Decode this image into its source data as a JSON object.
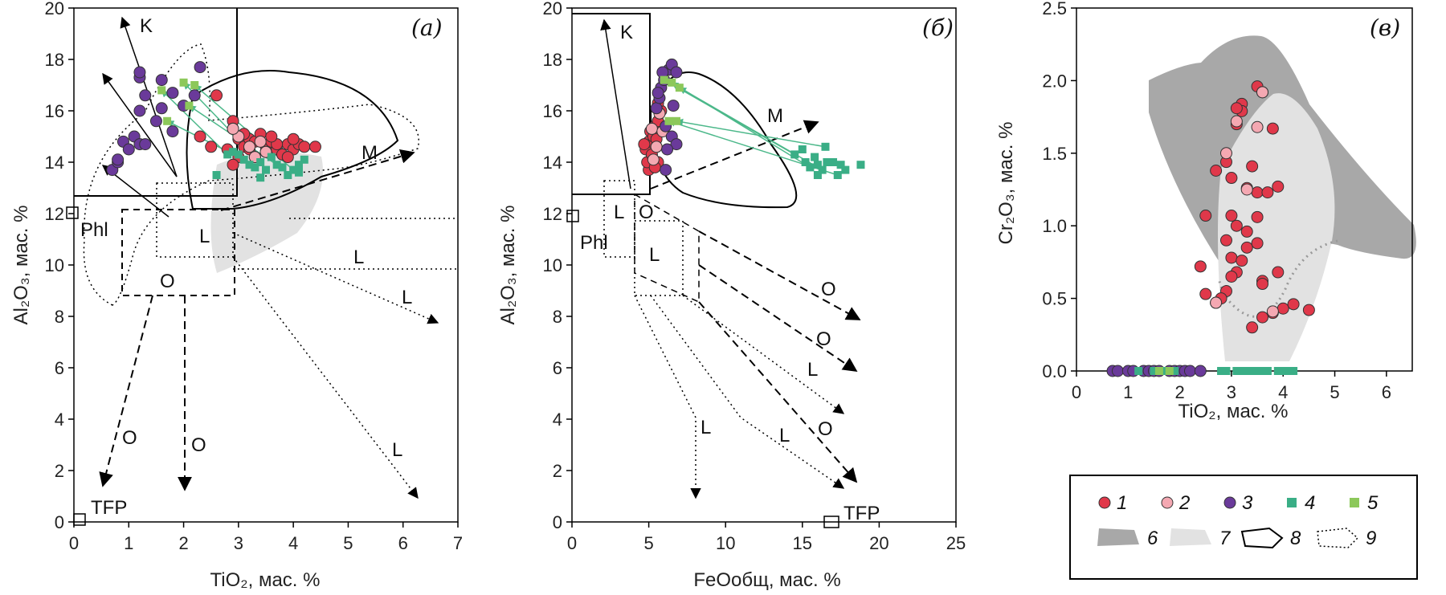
{
  "colors": {
    "red": "#e0384a",
    "pink": "#f4a8b2",
    "purple": "#6a3a9a",
    "teal": "#3aae86",
    "lime": "#8cc85a",
    "darkgray": "#a8a8a8",
    "lightgray": "#e2e2e2",
    "arrowgreen": "#4cb88a"
  },
  "chart_data": [
    {
      "type": "scatter",
      "panel_label": "(а)",
      "xlabel": "TiO₂, мас. %",
      "ylabel": "Al₂O₃, мас. %",
      "xlim": [
        0,
        7
      ],
      "ylim": [
        0,
        20
      ],
      "xticks": [
        "0",
        "1",
        "2",
        "3",
        "4",
        "5",
        "6",
        "7"
      ],
      "yticks": [
        "0",
        "2",
        "4",
        "6",
        "8",
        "10",
        "12",
        "14",
        "16",
        "18",
        "20"
      ],
      "labels": {
        "phl": "Phl",
        "tfp": "TFP",
        "k": "K",
        "m": "M",
        "l": "L",
        "o": "O"
      },
      "series": [
        {
          "name": "1",
          "values": [
            [
              2.9,
              15.6
            ],
            [
              2.9,
              15.3
            ],
            [
              3.0,
              14.9
            ],
            [
              3.1,
              14.6
            ],
            [
              3.2,
              14.9
            ],
            [
              3.3,
              14.8
            ],
            [
              3.4,
              15.1
            ],
            [
              3.5,
              14.6
            ],
            [
              3.6,
              14.8
            ],
            [
              3.7,
              14.5
            ],
            [
              3.8,
              14.3
            ],
            [
              3.9,
              14.7
            ],
            [
              4.0,
              14.5
            ],
            [
              4.1,
              14.7
            ],
            [
              4.2,
              14.6
            ],
            [
              4.4,
              14.6
            ],
            [
              2.8,
              14.5
            ],
            [
              3.0,
              14.2
            ],
            [
              3.3,
              14.2
            ],
            [
              3.5,
              14.4
            ],
            [
              3.7,
              14.7
            ],
            [
              3.9,
              14.2
            ],
            [
              4.0,
              14.9
            ],
            [
              3.1,
              15.1
            ],
            [
              2.6,
              16.6
            ],
            [
              2.5,
              14.6
            ],
            [
              2.3,
              15.0
            ],
            [
              2.9,
              13.9
            ],
            [
              3.2,
              14.5
            ],
            [
              3.6,
              15.0
            ]
          ]
        },
        {
          "name": "2",
          "values": [
            [
              3.0,
              15.0
            ],
            [
              3.3,
              14.2
            ],
            [
              3.5,
              14.4
            ],
            [
              2.9,
              15.3
            ],
            [
              3.2,
              14.6
            ],
            [
              3.4,
              14.8
            ]
          ]
        },
        {
          "name": "3",
          "values": [
            [
              0.7,
              13.7
            ],
            [
              0.8,
              14.0
            ],
            [
              0.9,
              14.8
            ],
            [
              1.0,
              14.5
            ],
            [
              1.1,
              15.0
            ],
            [
              1.2,
              14.7
            ],
            [
              1.3,
              14.7
            ],
            [
              1.5,
              15.6
            ],
            [
              1.6,
              16.1
            ],
            [
              1.8,
              15.2
            ],
            [
              2.0,
              16.2
            ],
            [
              2.2,
              16.6
            ],
            [
              2.3,
              17.7
            ],
            [
              1.2,
              16.0
            ],
            [
              1.3,
              16.6
            ],
            [
              1.2,
              17.3
            ],
            [
              1.2,
              17.5
            ],
            [
              1.6,
              17.2
            ],
            [
              1.8,
              16.7
            ],
            [
              0.8,
              14.1
            ]
          ]
        },
        {
          "name": "4",
          "values": [
            [
              2.8,
              14.3
            ],
            [
              2.9,
              14.4
            ],
            [
              3.0,
              14.3
            ],
            [
              3.1,
              14.1
            ],
            [
              3.2,
              13.9
            ],
            [
              3.3,
              13.8
            ],
            [
              3.4,
              14.0
            ],
            [
              3.5,
              13.7
            ],
            [
              3.6,
              14.2
            ],
            [
              3.7,
              13.9
            ],
            [
              3.8,
              13.8
            ],
            [
              3.9,
              13.5
            ],
            [
              4.0,
              13.7
            ],
            [
              4.1,
              13.9
            ],
            [
              4.2,
              14.1
            ],
            [
              2.6,
              13.5
            ],
            [
              3.4,
              13.4
            ],
            [
              4.1,
              13.6
            ]
          ]
        },
        {
          "name": "5",
          "values": [
            [
              1.6,
              16.8
            ],
            [
              1.7,
              15.6
            ],
            [
              2.0,
              17.1
            ],
            [
              2.1,
              16.2
            ],
            [
              2.2,
              17.0
            ]
          ]
        }
      ]
    },
    {
      "type": "scatter",
      "panel_label": "(б)",
      "xlabel": "FeOобщ, мас. %",
      "ylabel": "Al₂O₃, мас. %",
      "xlim": [
        0,
        25
      ],
      "ylim": [
        0,
        20
      ],
      "xticks": [
        "0",
        "5",
        "10",
        "15",
        "20",
        "25"
      ],
      "yticks": [
        "0",
        "2",
        "4",
        "6",
        "8",
        "10",
        "12",
        "14",
        "16",
        "18",
        "20"
      ],
      "labels": {
        "phl": "Phl",
        "tfp": "TFP",
        "k": "K",
        "m": "M",
        "l": "L",
        "o": "O"
      },
      "series": [
        {
          "name": "1",
          "values": [
            [
              4.8,
              14.5
            ],
            [
              5.0,
              14.8
            ],
            [
              5.1,
              15.2
            ],
            [
              5.2,
              14.2
            ],
            [
              5.3,
              13.9
            ],
            [
              5.4,
              15.4
            ],
            [
              5.5,
              14.6
            ],
            [
              5.6,
              14.0
            ],
            [
              5.0,
              13.7
            ],
            [
              5.3,
              15.0
            ],
            [
              5.6,
              15.6
            ],
            [
              5.8,
              16.0
            ],
            [
              5.6,
              16.3
            ],
            [
              4.9,
              14.0
            ],
            [
              5.2,
              14.3
            ],
            [
              5.4,
              13.8
            ],
            [
              5.5,
              14.9
            ],
            [
              4.7,
              14.7
            ]
          ]
        },
        {
          "name": "2",
          "values": [
            [
              5.2,
              15.3
            ],
            [
              5.5,
              14.6
            ],
            [
              5.7,
              15.9
            ],
            [
              5.3,
              14.1
            ],
            [
              5.9,
              15.2
            ]
          ]
        },
        {
          "name": "3",
          "values": [
            [
              5.5,
              16.1
            ],
            [
              5.7,
              16.5
            ],
            [
              5.8,
              16.9
            ],
            [
              6.0,
              17.2
            ],
            [
              6.3,
              17.6
            ],
            [
              6.5,
              17.8
            ],
            [
              6.8,
              17.5
            ],
            [
              5.9,
              17.5
            ],
            [
              6.1,
              15.4
            ],
            [
              6.5,
              15.0
            ],
            [
              6.8,
              14.7
            ],
            [
              5.6,
              16.7
            ],
            [
              6.2,
              14.5
            ],
            [
              6.1,
              13.7
            ],
            [
              6.6,
              16.2
            ]
          ]
        },
        {
          "name": "4",
          "values": [
            [
              14.5,
              14.3
            ],
            [
              15.0,
              14.5
            ],
            [
              15.2,
              14.0
            ],
            [
              15.5,
              13.8
            ],
            [
              15.8,
              14.2
            ],
            [
              16.0,
              13.9
            ],
            [
              16.3,
              13.7
            ],
            [
              16.6,
              14.0
            ],
            [
              17.0,
              14.0
            ],
            [
              17.3,
              13.5
            ],
            [
              17.8,
              13.7
            ],
            [
              18.8,
              13.9
            ],
            [
              16.5,
              14.6
            ],
            [
              16.0,
              13.5
            ],
            [
              17.5,
              13.9
            ]
          ]
        },
        {
          "name": "5",
          "values": [
            [
              6.0,
              17.2
            ],
            [
              6.5,
              17.1
            ],
            [
              7.0,
              16.9
            ],
            [
              6.3,
              15.6
            ],
            [
              6.8,
              15.6
            ]
          ]
        }
      ]
    },
    {
      "type": "scatter",
      "panel_label": "(в)",
      "xlabel": "TiO₂, мас. %",
      "ylabel": "Cr₂O₃, мас. %",
      "xlim": [
        0,
        6.5
      ],
      "ylim": [
        0,
        2.5
      ],
      "xticks": [
        "0",
        "1",
        "2",
        "3",
        "4",
        "5",
        "6"
      ],
      "yticks": [
        "0.0",
        "0.5",
        "1.0",
        "1.5",
        "2.0",
        "2.5"
      ],
      "series": [
        {
          "name": "1",
          "values": [
            [
              3.5,
              1.96
            ],
            [
              3.6,
              1.92
            ],
            [
              3.2,
              1.84
            ],
            [
              3.2,
              1.79
            ],
            [
              3.1,
              1.81
            ],
            [
              3.1,
              1.7
            ],
            [
              3.8,
              1.67
            ],
            [
              2.9,
              1.44
            ],
            [
              2.7,
              1.38
            ],
            [
              3.0,
              1.33
            ],
            [
              3.3,
              1.26
            ],
            [
              3.5,
              1.23
            ],
            [
              3.7,
              1.23
            ],
            [
              3.9,
              1.27
            ],
            [
              3.4,
              1.41
            ],
            [
              2.5,
              1.07
            ],
            [
              3.0,
              1.07
            ],
            [
              3.1,
              1.0
            ],
            [
              3.3,
              0.96
            ],
            [
              3.5,
              1.06
            ],
            [
              2.9,
              0.9
            ],
            [
              3.3,
              0.85
            ],
            [
              3.5,
              0.88
            ],
            [
              3.0,
              0.78
            ],
            [
              3.2,
              0.76
            ],
            [
              3.1,
              0.68
            ],
            [
              3.0,
              0.65
            ],
            [
              2.4,
              0.72
            ],
            [
              3.6,
              0.62
            ],
            [
              3.9,
              0.68
            ],
            [
              2.5,
              0.53
            ],
            [
              2.9,
              0.55
            ],
            [
              2.8,
              0.5
            ],
            [
              3.6,
              0.6
            ],
            [
              2.7,
              0.47
            ],
            [
              3.8,
              0.4
            ],
            [
              4.0,
              0.43
            ],
            [
              4.2,
              0.46
            ],
            [
              4.5,
              0.42
            ],
            [
              3.6,
              0.37
            ],
            [
              3.4,
              0.3
            ]
          ]
        },
        {
          "name": "2",
          "values": [
            [
              3.6,
              1.92
            ],
            [
              3.5,
              1.68
            ],
            [
              3.1,
              1.72
            ],
            [
              2.9,
              1.5
            ],
            [
              3.3,
              1.25
            ],
            [
              2.7,
              0.47
            ],
            [
              3.8,
              0.41
            ]
          ]
        },
        {
          "name": "3",
          "values": [
            [
              0.7,
              0.0
            ],
            [
              0.8,
              0.0
            ],
            [
              1.0,
              0.0
            ],
            [
              1.1,
              0.0
            ],
            [
              1.3,
              0.0
            ],
            [
              1.4,
              0.0
            ],
            [
              1.5,
              0.0
            ],
            [
              1.6,
              0.0
            ],
            [
              1.8,
              0.0
            ],
            [
              1.9,
              0.0
            ],
            [
              2.0,
              0.0
            ],
            [
              2.1,
              0.0
            ],
            [
              2.2,
              0.0
            ],
            [
              2.4,
              0.0
            ]
          ]
        },
        {
          "name": "4",
          "values": [
            [
              1.2,
              0.0
            ],
            [
              1.5,
              0.0
            ],
            [
              1.7,
              0.0
            ],
            [
              1.9,
              0.0
            ],
            [
              2.8,
              0.0
            ],
            [
              2.9,
              0.0
            ],
            [
              3.1,
              0.0
            ],
            [
              3.2,
              0.0
            ],
            [
              3.3,
              0.0
            ],
            [
              3.4,
              0.0
            ],
            [
              3.5,
              0.0
            ],
            [
              3.6,
              0.0
            ],
            [
              3.7,
              0.0
            ],
            [
              3.9,
              0.0
            ],
            [
              4.0,
              0.0
            ],
            [
              4.1,
              0.0
            ],
            [
              4.2,
              0.0
            ]
          ]
        },
        {
          "name": "5",
          "values": [
            [
              1.6,
              0.0
            ],
            [
              1.8,
              0.0
            ]
          ]
        }
      ]
    }
  ],
  "legend": {
    "items": [
      {
        "label": "1",
        "symbol": "circle",
        "color": "#e0384a"
      },
      {
        "label": "2",
        "symbol": "circle",
        "color": "#f4a8b2"
      },
      {
        "label": "3",
        "symbol": "circle",
        "color": "#6a3a9a"
      },
      {
        "label": "4",
        "symbol": "square",
        "color": "#3aae86"
      },
      {
        "label": "5",
        "symbol": "square",
        "color": "#8cc85a"
      },
      {
        "label": "6",
        "symbol": "darkfield",
        "color": "#a8a8a8"
      },
      {
        "label": "7",
        "symbol": "lightfield",
        "color": "#e2e2e2"
      },
      {
        "label": "8",
        "symbol": "solidoutline",
        "color": "#000000"
      },
      {
        "label": "9",
        "symbol": "dottedoutline",
        "color": "#000000"
      }
    ]
  }
}
